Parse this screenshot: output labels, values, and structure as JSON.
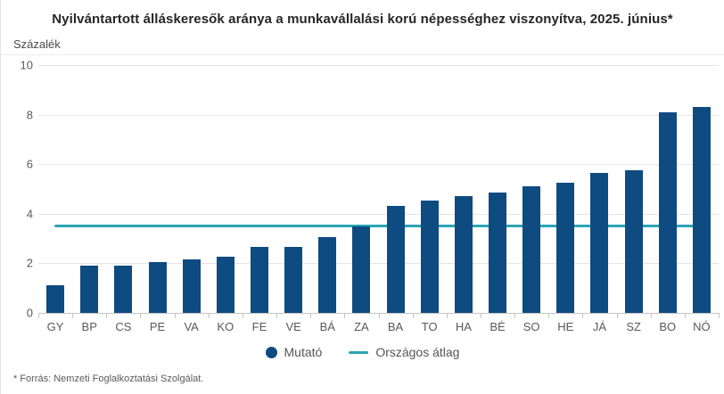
{
  "page": {
    "title": "Nyilvántartott álláskeresők aránya a munkavállalási korú népességhez viszonyítva, 2025. június*",
    "y_axis_unit_label": "Százalék",
    "footnote": "* Forrás: Nemzeti Foglalkoztatási Szolgálat."
  },
  "legend": {
    "series_label": "Mutató",
    "average_label": "Országos átlag"
  },
  "colors": {
    "bar": "#0e4b81",
    "average_line": "#2aa6b4",
    "gridline": "#e4e4e4",
    "axis": "#c4c4c4",
    "text_muted": "#595959",
    "title_text": "#262626"
  },
  "chart_data": {
    "type": "bar",
    "title": "Nyilvántartott álláskeresők aránya a munkavállalási korú népességhez viszonyítva, 2025. június*",
    "xlabel": "",
    "ylabel": "Százalék",
    "ylim": [
      0,
      10
    ],
    "yticks": [
      0,
      2,
      4,
      6,
      8,
      10
    ],
    "grid": true,
    "legend_position": "bottom",
    "categories": [
      "GY",
      "BP",
      "CS",
      "PE",
      "VA",
      "KO",
      "FE",
      "VE",
      "BÁ",
      "ZA",
      "BA",
      "TO",
      "HA",
      "BÉ",
      "SO",
      "HE",
      "JÁ",
      "SZ",
      "BO",
      "NÓ"
    ],
    "series": [
      {
        "name": "Mutató",
        "values": [
          1.1,
          1.9,
          1.9,
          2.05,
          2.15,
          2.25,
          2.65,
          2.65,
          3.05,
          3.5,
          4.3,
          4.55,
          4.7,
          4.85,
          5.1,
          5.25,
          5.65,
          5.75,
          8.1,
          8.3
        ]
      }
    ],
    "average_line": {
      "name": "Országos átlag",
      "value": 3.5
    }
  }
}
